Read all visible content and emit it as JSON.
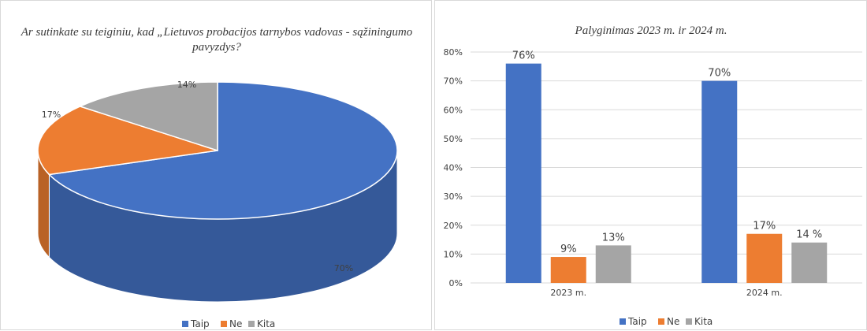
{
  "chart_data": [
    {
      "type": "pie",
      "title_lines": [
        "Ar sutinkate su teiginiu, kad „Lietuvos probacijos tarnybos vadovas - sąžiningumo",
        "pavyzdys?"
      ],
      "slices": [
        {
          "name": "Taip",
          "value": 70,
          "label": "70%",
          "color": "#4472C4"
        },
        {
          "name": "Ne",
          "value": 17,
          "label": "17%",
          "color": "#ED7D31"
        },
        {
          "name": "Kita",
          "value": 14,
          "label": "14%",
          "color": "#A5A5A5"
        }
      ],
      "legend": [
        "Taip",
        "Ne",
        "Kita"
      ],
      "legend_position": "bottom"
    },
    {
      "type": "bar",
      "title": "Palyginimas 2023 m. ir 2024 m.",
      "categories": [
        "2023 m.",
        "2024 m."
      ],
      "series": [
        {
          "name": "Taip",
          "values": [
            76,
            70
          ],
          "labels": [
            "76%",
            "70%"
          ],
          "color": "#4472C4"
        },
        {
          "name": "Ne",
          "values": [
            9,
            17
          ],
          "labels": [
            "9%",
            "17%"
          ],
          "color": "#ED7D31"
        },
        {
          "name": "Kita",
          "values": [
            13,
            14
          ],
          "labels": [
            "13%",
            "14 %"
          ],
          "color": "#A5A5A5"
        }
      ],
      "ylim": [
        0,
        80
      ],
      "yticks": [
        "0%",
        "10%",
        "20%",
        "30%",
        "40%",
        "50%",
        "60%",
        "70%",
        "80%"
      ],
      "grid": true,
      "legend_position": "bottom"
    }
  ]
}
